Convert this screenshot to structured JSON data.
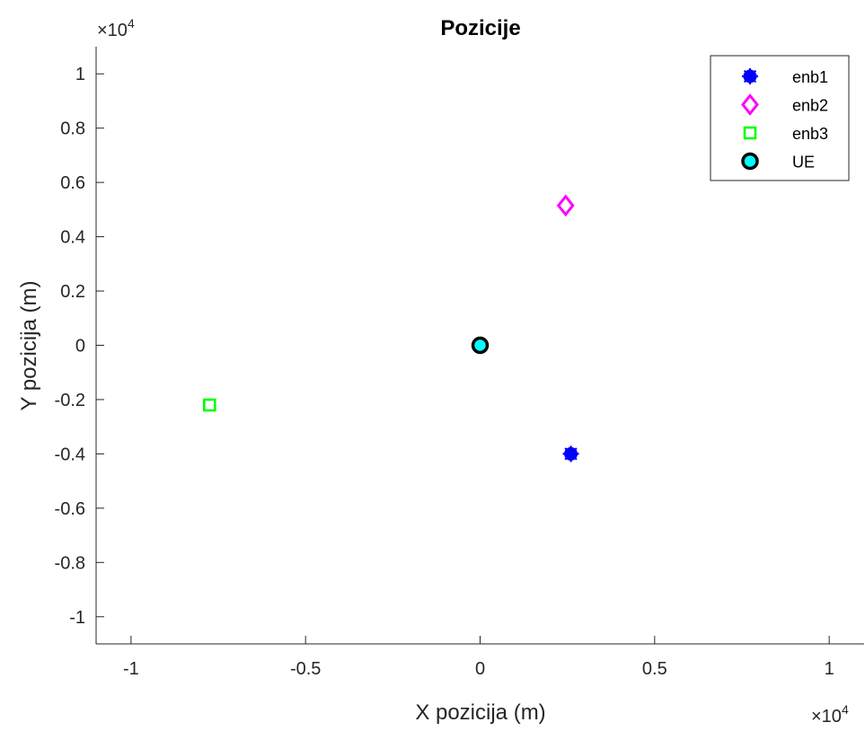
{
  "chart_data": {
    "type": "scatter",
    "title": "Pozicije",
    "xlabel": "X pozicija (m)",
    "ylabel": "Y pozicija (m)",
    "xlim": [
      -11000,
      11000
    ],
    "ylim": [
      -11000,
      11000
    ],
    "x_ticks": [
      -10000,
      -5000,
      0,
      5000,
      10000
    ],
    "x_tick_labels": [
      "-1",
      "-0.5",
      "0",
      "0.5",
      "1"
    ],
    "y_ticks": [
      -10000,
      -8000,
      -6000,
      -4000,
      -2000,
      0,
      2000,
      4000,
      6000,
      8000,
      10000
    ],
    "y_tick_labels": [
      "-1",
      "-0.8",
      "-0.6",
      "-0.4",
      "-0.2",
      "0",
      "0.2",
      "0.4",
      "0.6",
      "0.8",
      "1"
    ],
    "x_exponent": {
      "base": "×10",
      "power": "4"
    },
    "y_exponent": {
      "base": "×10",
      "power": "4"
    },
    "grid": false,
    "legend_position": "top-right",
    "series": [
      {
        "name": "enb1",
        "marker": "asterisk-filled",
        "color": "#0000FF",
        "points": [
          {
            "x": 2600,
            "y": -4000
          }
        ]
      },
      {
        "name": "enb2",
        "marker": "diamond",
        "color": "#FF00FF",
        "points": [
          {
            "x": 2450,
            "y": 5150
          }
        ]
      },
      {
        "name": "enb3",
        "marker": "square",
        "color": "#00FF00",
        "points": [
          {
            "x": -7750,
            "y": -2200
          }
        ]
      },
      {
        "name": "UE",
        "marker": "circle",
        "color": "#00FFFF",
        "edge_color": "#000000",
        "points": [
          {
            "x": 0,
            "y": 0
          }
        ]
      }
    ]
  }
}
